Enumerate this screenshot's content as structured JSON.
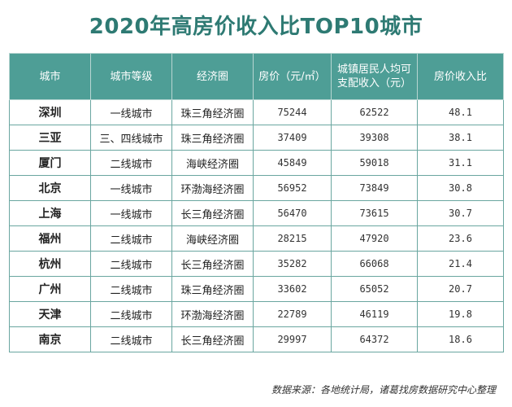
{
  "title": "2020年高房价收入比TOP10城市",
  "footnote": "数据来源：各地统计局，诸葛找房数据研究中心整理",
  "colors": {
    "title": "#2e7a73",
    "header_bg": "#4e9e96",
    "border": "#6aa6a0"
  },
  "chart_data": {
    "type": "table",
    "title": "2020年高房价收入比TOP10城市",
    "columns": [
      "城市",
      "城市等级",
      "经济圈",
      "房价（元/㎡）",
      "城镇居民人均可支配收入（元）",
      "房价收入比"
    ],
    "rows": [
      [
        "深圳",
        "一线城市",
        "珠三角经济圈",
        "75244",
        "62522",
        "48.1"
      ],
      [
        "三亚",
        "三、四线城市",
        "珠三角经济圈",
        "37409",
        "39308",
        "38.1"
      ],
      [
        "厦门",
        "二线城市",
        "海峡经济圈",
        "45849",
        "59018",
        "31.1"
      ],
      [
        "北京",
        "一线城市",
        "环渤海经济圈",
        "56952",
        "73849",
        "30.8"
      ],
      [
        "上海",
        "一线城市",
        "长三角经济圈",
        "56470",
        "73615",
        "30.7"
      ],
      [
        "福州",
        "二线城市",
        "海峡经济圈",
        "28215",
        "47920",
        "23.6"
      ],
      [
        "杭州",
        "二线城市",
        "长三角经济圈",
        "35282",
        "66068",
        "21.4"
      ],
      [
        "广州",
        "二线城市",
        "珠三角经济圈",
        "33602",
        "65052",
        "20.7"
      ],
      [
        "天津",
        "二线城市",
        "环渤海经济圈",
        "22789",
        "46119",
        "19.8"
      ],
      [
        "南京",
        "二线城市",
        "长三角经济圈",
        "29997",
        "64372",
        "18.6"
      ]
    ]
  }
}
